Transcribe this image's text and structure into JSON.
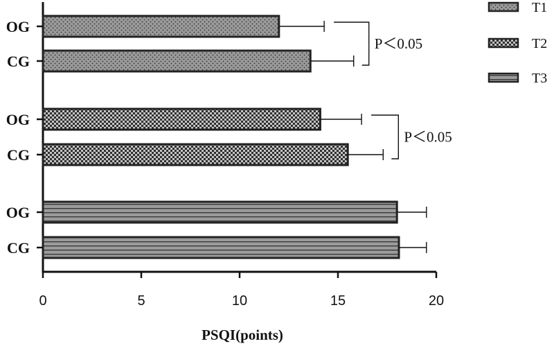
{
  "chart_data": {
    "type": "bar",
    "orientation": "horizontal",
    "categories": [
      "OG",
      "CG"
    ],
    "series": [
      {
        "name": "T1",
        "pattern": "dots",
        "values": [
          12.0,
          13.6
        ],
        "errors": [
          2.3,
          2.2
        ]
      },
      {
        "name": "T2",
        "pattern": "checker",
        "values": [
          14.1,
          15.5
        ],
        "errors": [
          2.1,
          1.8
        ]
      },
      {
        "name": "T3",
        "pattern": "stripes",
        "values": [
          18.0,
          18.1
        ],
        "errors": [
          1.5,
          1.4
        ]
      }
    ],
    "xlabel": "PSQI(points)",
    "ylabel": "",
    "xlim": [
      0,
      20
    ],
    "xticks": [
      "0",
      "5",
      "10",
      "15",
      "20"
    ],
    "grid": false,
    "legend": {
      "position": "top-right",
      "entries": [
        "T1",
        "T2",
        "T3"
      ]
    },
    "annotations": [
      {
        "series": "T1",
        "text": "P＜0.05"
      },
      {
        "series": "T2",
        "text": "P＜0.05"
      }
    ],
    "colors": {
      "bar_fill": "#999999",
      "bar_stroke": "#222222",
      "pattern_dark": "#333333",
      "pattern_light": "#bbbbbb"
    }
  }
}
